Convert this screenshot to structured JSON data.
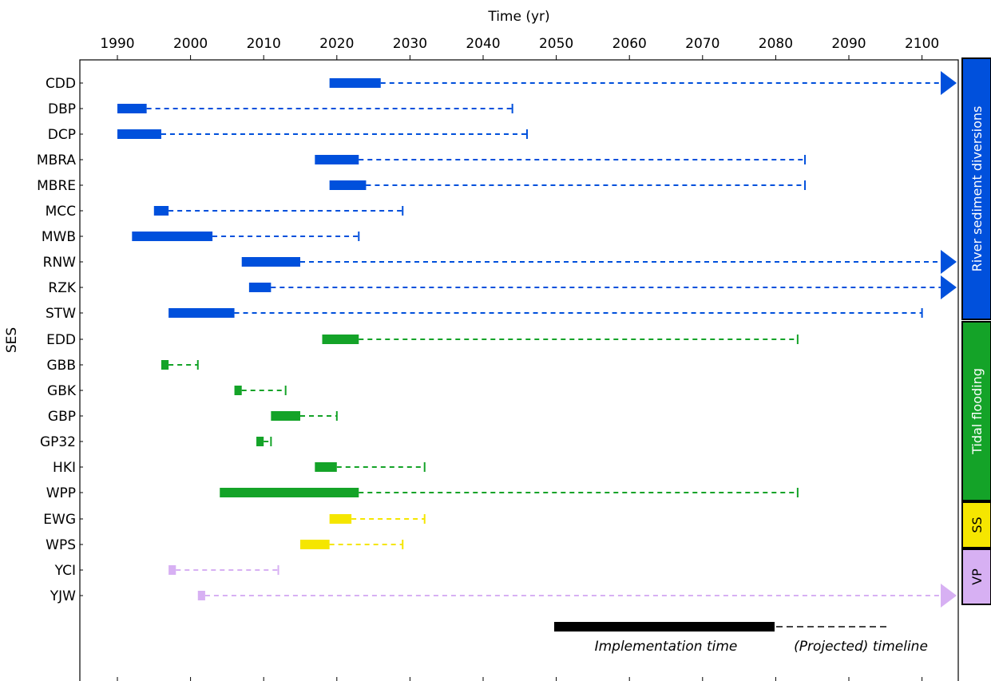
{
  "chart_data": {
    "type": "timeline",
    "xlabel": "Time (yr)",
    "ylabel": "SES",
    "xlim": [
      1984,
      2105
    ],
    "xticks": [
      1990,
      2000,
      2010,
      2020,
      2030,
      2040,
      2050,
      2060,
      2070,
      2080,
      2090,
      2100
    ],
    "colors": {
      "rsd": "#0050dc",
      "tf": "#14a328",
      "ss": "#f5e600",
      "vp": "#d7b0f3"
    },
    "rows": [
      {
        "label": "CDD",
        "group": "rsd",
        "impl_start": 2019,
        "impl_end": 2026,
        "proj_end": 2105,
        "arrow": true
      },
      {
        "label": "DBP",
        "group": "rsd",
        "impl_start": 1990,
        "impl_end": 1994,
        "proj_end": 2044
      },
      {
        "label": "DCP",
        "group": "rsd",
        "impl_start": 1990,
        "impl_end": 1996,
        "proj_end": 2046
      },
      {
        "label": "MBRA",
        "group": "rsd",
        "impl_start": 2017,
        "impl_end": 2023,
        "proj_end": 2084
      },
      {
        "label": "MBRE",
        "group": "rsd",
        "impl_start": 2019,
        "impl_end": 2024,
        "proj_end": 2084
      },
      {
        "label": "MCC",
        "group": "rsd",
        "impl_start": 1995,
        "impl_end": 1997,
        "proj_end": 2029
      },
      {
        "label": "MWB",
        "group": "rsd",
        "impl_start": 1992,
        "impl_end": 2003,
        "proj_end": 2023
      },
      {
        "label": "RNW",
        "group": "rsd",
        "impl_start": 2007,
        "impl_end": 2015,
        "proj_end": 2105,
        "arrow": true
      },
      {
        "label": "RZK",
        "group": "rsd",
        "impl_start": 2008,
        "impl_end": 2011,
        "proj_end": 2105,
        "arrow": true
      },
      {
        "label": "STW",
        "group": "rsd",
        "impl_start": 1997,
        "impl_end": 2006,
        "proj_end": 2100
      },
      {
        "label": "EDD",
        "group": "tf",
        "impl_start": 2018,
        "impl_end": 2023,
        "proj_end": 2083
      },
      {
        "label": "GBB",
        "group": "tf",
        "impl_start": 1996,
        "impl_end": 1997,
        "proj_end": 2001
      },
      {
        "label": "GBK",
        "group": "tf",
        "impl_start": 2006,
        "impl_end": 2007,
        "proj_end": 2013
      },
      {
        "label": "GBP",
        "group": "tf",
        "impl_start": 2011,
        "impl_end": 2015,
        "proj_end": 2020
      },
      {
        "label": "GP32",
        "group": "tf",
        "impl_start": 2009,
        "impl_end": 2010,
        "proj_end": 2011
      },
      {
        "label": "HKI",
        "group": "tf",
        "impl_start": 2017,
        "impl_end": 2020,
        "proj_end": 2032
      },
      {
        "label": "WPP",
        "group": "tf",
        "impl_start": 2004,
        "impl_end": 2023,
        "proj_end": 2083
      },
      {
        "label": "EWG",
        "group": "ss",
        "impl_start": 2019,
        "impl_end": 2022,
        "proj_end": 2032
      },
      {
        "label": "WPS",
        "group": "ss",
        "impl_start": 2015,
        "impl_end": 2019,
        "proj_end": 2029
      },
      {
        "label": "YCI",
        "group": "vp",
        "impl_start": 1997,
        "impl_end": 1998,
        "proj_end": 2012
      },
      {
        "label": "YJW",
        "group": "vp",
        "impl_start": 2001,
        "impl_end": 2002,
        "proj_end": 2105,
        "arrow": true
      }
    ],
    "groups": [
      {
        "key": "rsd",
        "label": "River sediment diversions"
      },
      {
        "key": "tf",
        "label": "Tidal flooding"
      },
      {
        "key": "ss",
        "label": "SS"
      },
      {
        "key": "vp",
        "label": "VP"
      }
    ],
    "legend": {
      "implementation": "Implementation time",
      "projected": "(Projected) timeline"
    }
  }
}
